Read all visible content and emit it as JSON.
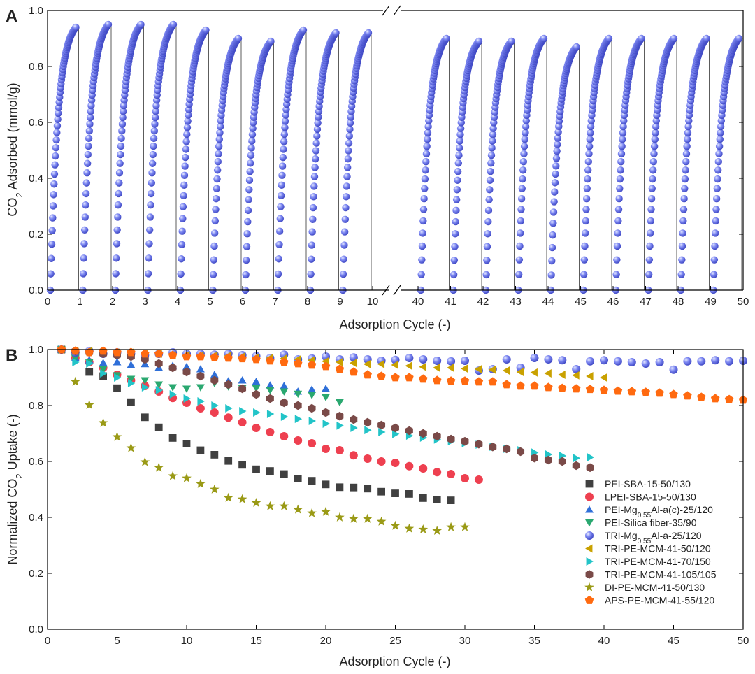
{
  "colors": {
    "sphere": "#6a76ee",
    "axis": "#000000"
  },
  "chart_data": [
    {
      "id": "A",
      "panel_label": "A",
      "type": "scatter",
      "title": "",
      "xlabel": "Adsorption Cycle (-)",
      "ylabel_main": "CO",
      "ylabel_sub": "2",
      "ylabel_rest": " Adsorbed (mmol/g)",
      "axis_break": true,
      "x_segments": [
        {
          "range": [
            0,
            10
          ],
          "ticks": [
            "0",
            "1",
            "2",
            "3",
            "4",
            "5",
            "6",
            "7",
            "8",
            "9",
            "10"
          ]
        },
        {
          "range": [
            40,
            50
          ],
          "ticks": [
            "40",
            "41",
            "42",
            "43",
            "44",
            "45",
            "46",
            "47",
            "48",
            "49",
            "50"
          ]
        }
      ],
      "ylim": [
        0,
        1.0
      ],
      "yticks": [
        "0.0",
        "0.2",
        "0.4",
        "0.6",
        "0.8",
        "1.0"
      ],
      "series": [
        {
          "name": "CO2 adsorption cycles",
          "marker": "sphere",
          "color": "#6a76ee",
          "cycle_peaks_first": [
            0.94,
            0.95,
            0.95,
            0.95,
            0.93,
            0.9,
            0.89,
            0.93,
            0.92,
            0.92
          ],
          "cycle_peaks_second": [
            0.9,
            0.89,
            0.89,
            0.9,
            0.87,
            0.9,
            0.9,
            0.9,
            0.9,
            0.9
          ]
        }
      ]
    },
    {
      "id": "B",
      "panel_label": "B",
      "type": "scatter",
      "title": "",
      "xlabel": "Adsorption Cycle (-)",
      "ylabel_main": "Normalized CO",
      "ylabel_sub": "2",
      "ylabel_rest": " Uptake (-)",
      "xlim": [
        0,
        50
      ],
      "xticks": [
        0,
        5,
        10,
        15,
        20,
        25,
        30,
        35,
        40,
        45,
        50
      ],
      "ylim": [
        0,
        1.0
      ],
      "yticks": [
        "0.0",
        "0.2",
        "0.4",
        "0.6",
        "0.8",
        "1.0"
      ],
      "legend_position": "lower-right",
      "series": [
        {
          "name": "PEI-SBA-15-50/130",
          "label_parts": [
            [
              "PEI-SBA-15-50/130",
              ""
            ]
          ],
          "marker": "square",
          "color": "#404040",
          "x": [
            1,
            2,
            3,
            4,
            5,
            6,
            7,
            8,
            9,
            10,
            11,
            12,
            13,
            14,
            15,
            16,
            17,
            18,
            19,
            20,
            21,
            22,
            23,
            24,
            25,
            26,
            27,
            28,
            29
          ],
          "y": [
            1.0,
            0.975,
            0.92,
            0.905,
            0.862,
            0.812,
            0.758,
            0.722,
            0.684,
            0.664,
            0.64,
            0.624,
            0.602,
            0.588,
            0.572,
            0.566,
            0.555,
            0.539,
            0.531,
            0.518,
            0.508,
            0.507,
            0.503,
            0.492,
            0.486,
            0.484,
            0.469,
            0.464,
            0.461
          ]
        },
        {
          "name": "LPEI-SBA-15-50/130",
          "label_parts": [
            [
              "LPEI-SBA-15-50/130",
              ""
            ]
          ],
          "marker": "circle",
          "color": "#ee4050",
          "x": [
            1,
            2,
            3,
            4,
            5,
            6,
            7,
            8,
            9,
            10,
            11,
            12,
            13,
            14,
            15,
            16,
            17,
            18,
            19,
            20,
            21,
            22,
            23,
            24,
            25,
            26,
            27,
            28,
            29,
            30,
            31
          ],
          "y": [
            1.0,
            0.97,
            0.955,
            0.935,
            0.91,
            0.89,
            0.87,
            0.85,
            0.827,
            0.81,
            0.79,
            0.775,
            0.757,
            0.74,
            0.72,
            0.705,
            0.69,
            0.675,
            0.665,
            0.645,
            0.64,
            0.622,
            0.61,
            0.6,
            0.595,
            0.583,
            0.575,
            0.562,
            0.555,
            0.54,
            0.535
          ]
        },
        {
          "name": "PEI-Mg0.55Al-a(c)-25/120",
          "label_parts": [
            [
              "PEI-Mg",
              ""
            ],
            [
              "0.55",
              "sub"
            ],
            [
              "Al-a(c)-25/120",
              ""
            ]
          ],
          "marker": "triangle-up",
          "color": "#2f6fd8",
          "x": [
            1,
            2,
            3,
            4,
            5,
            6,
            7,
            8,
            9,
            10,
            11,
            12,
            13,
            14,
            15,
            16,
            17,
            18,
            19,
            20
          ],
          "y": [
            1.0,
            0.97,
            0.962,
            0.952,
            0.955,
            0.945,
            0.948,
            0.935,
            0.942,
            0.938,
            0.93,
            0.91,
            0.887,
            0.89,
            0.885,
            0.872,
            0.87,
            0.85,
            0.857,
            0.86
          ]
        },
        {
          "name": "PEI-Silica fiber-35/90",
          "label_parts": [
            [
              "PEI-Silica fiber-35/90",
              ""
            ]
          ],
          "marker": "triangle-down",
          "color": "#2aa870",
          "x": [
            1,
            2,
            3,
            4,
            5,
            6,
            7,
            8,
            9,
            10,
            11,
            12,
            13,
            14,
            15,
            16,
            17,
            18,
            19,
            20,
            21
          ],
          "y": [
            1.0,
            0.97,
            0.955,
            0.93,
            0.908,
            0.895,
            0.89,
            0.875,
            0.865,
            0.86,
            0.865,
            0.88,
            0.868,
            0.862,
            0.862,
            0.855,
            0.85,
            0.842,
            0.838,
            0.83,
            0.812
          ]
        },
        {
          "name": "TRI-Mg0.55Al-a-25/120",
          "label_parts": [
            [
              "TRI-Mg",
              ""
            ],
            [
              "0.55",
              "sub"
            ],
            [
              "Al-a-25/120",
              ""
            ]
          ],
          "marker": "sphere",
          "color": "#6a76ee",
          "x": [
            1,
            2,
            3,
            4,
            5,
            6,
            7,
            8,
            9,
            10,
            11,
            12,
            13,
            14,
            15,
            16,
            17,
            18,
            19,
            20,
            21,
            22,
            23,
            24,
            25,
            26,
            27,
            28,
            29,
            30,
            31,
            32,
            33,
            34,
            35,
            36,
            37,
            38,
            39,
            40,
            41,
            42,
            43,
            44,
            45,
            46,
            47,
            48,
            49,
            50
          ],
          "y": [
            1.0,
            0.99,
            0.995,
            0.985,
            0.99,
            0.985,
            0.98,
            0.985,
            0.99,
            0.985,
            0.985,
            0.982,
            0.985,
            0.98,
            0.977,
            0.97,
            0.982,
            0.965,
            0.968,
            0.975,
            0.965,
            0.972,
            0.965,
            0.96,
            0.963,
            0.97,
            0.965,
            0.96,
            0.958,
            0.96,
            0.925,
            0.93,
            0.965,
            0.935,
            0.97,
            0.965,
            0.962,
            0.93,
            0.958,
            0.962,
            0.958,
            0.955,
            0.95,
            0.955,
            0.928,
            0.958,
            0.958,
            0.962,
            0.958,
            0.96
          ]
        },
        {
          "name": "TRI-PE-MCM-41-50/120",
          "label_parts": [
            [
              "TRI-PE-MCM-41-50/120",
              ""
            ]
          ],
          "marker": "triangle-left",
          "color": "#c9a100",
          "x": [
            1,
            2,
            3,
            4,
            5,
            6,
            7,
            8,
            9,
            10,
            11,
            12,
            13,
            14,
            15,
            16,
            17,
            18,
            19,
            20,
            21,
            22,
            23,
            24,
            25,
            26,
            27,
            28,
            29,
            30,
            31,
            32,
            33,
            34,
            35,
            36,
            37,
            38,
            39,
            40
          ],
          "y": [
            1.0,
            0.995,
            0.995,
            0.99,
            0.99,
            0.99,
            0.985,
            0.985,
            0.98,
            0.98,
            0.978,
            0.978,
            0.978,
            0.975,
            0.972,
            0.97,
            0.968,
            0.965,
            0.962,
            0.958,
            0.955,
            0.952,
            0.948,
            0.948,
            0.945,
            0.942,
            0.938,
            0.935,
            0.935,
            0.932,
            0.93,
            0.928,
            0.925,
            0.92,
            0.918,
            0.915,
            0.91,
            0.908,
            0.905,
            0.9
          ]
        },
        {
          "name": "TRI-PE-MCM-41-70/150",
          "label_parts": [
            [
              "TRI-PE-MCM-41-70/150",
              ""
            ]
          ],
          "marker": "triangle-right",
          "color": "#22c4c8",
          "x": [
            1,
            2,
            3,
            4,
            5,
            6,
            7,
            8,
            9,
            10,
            11,
            12,
            13,
            14,
            15,
            16,
            17,
            18,
            19,
            20,
            21,
            22,
            23,
            24,
            25,
            26,
            27,
            28,
            29,
            30,
            31,
            32,
            33,
            34,
            35,
            36,
            37,
            38,
            39
          ],
          "y": [
            1.0,
            0.955,
            0.95,
            0.915,
            0.9,
            0.88,
            0.865,
            0.855,
            0.84,
            0.825,
            0.815,
            0.8,
            0.79,
            0.78,
            0.775,
            0.77,
            0.76,
            0.752,
            0.745,
            0.735,
            0.728,
            0.72,
            0.712,
            0.705,
            0.698,
            0.692,
            0.685,
            0.678,
            0.672,
            0.665,
            0.66,
            0.652,
            0.645,
            0.64,
            0.632,
            0.625,
            0.62,
            0.612,
            0.615
          ]
        },
        {
          "name": "TRI-PE-MCM-41-105/105",
          "label_parts": [
            [
              "TRI-PE-MCM-41-105/105",
              ""
            ]
          ],
          "marker": "hexagon",
          "color": "#7a4a48",
          "x": [
            1,
            2,
            3,
            4,
            5,
            6,
            7,
            8,
            9,
            10,
            11,
            12,
            13,
            14,
            15,
            16,
            17,
            18,
            19,
            20,
            21,
            22,
            23,
            24,
            25,
            26,
            27,
            28,
            29,
            30,
            31,
            32,
            33,
            34,
            35,
            36,
            37,
            38,
            39
          ],
          "y": [
            1.0,
            0.995,
            0.99,
            0.985,
            0.98,
            0.975,
            0.965,
            0.95,
            0.935,
            0.92,
            0.905,
            0.89,
            0.875,
            0.86,
            0.84,
            0.825,
            0.81,
            0.8,
            0.79,
            0.775,
            0.762,
            0.75,
            0.74,
            0.73,
            0.72,
            0.71,
            0.7,
            0.69,
            0.68,
            0.672,
            0.662,
            0.652,
            0.645,
            0.635,
            0.612,
            0.605,
            0.6,
            0.585,
            0.578
          ]
        },
        {
          "name": "DI-PE-MCM-41-50/130",
          "label_parts": [
            [
              "DI-PE-MCM-41-50/130",
              ""
            ]
          ],
          "marker": "star",
          "color": "#9a9a16",
          "x": [
            1,
            2,
            3,
            4,
            5,
            6,
            7,
            8,
            9,
            10,
            11,
            12,
            13,
            14,
            15,
            16,
            17,
            18,
            19,
            20,
            21,
            22,
            23,
            24,
            25,
            26,
            27,
            28,
            29,
            30
          ],
          "y": [
            1.0,
            0.885,
            0.802,
            0.738,
            0.688,
            0.648,
            0.598,
            0.578,
            0.548,
            0.54,
            0.52,
            0.5,
            0.47,
            0.465,
            0.452,
            0.44,
            0.44,
            0.428,
            0.415,
            0.42,
            0.4,
            0.395,
            0.395,
            0.385,
            0.37,
            0.36,
            0.357,
            0.352,
            0.365,
            0.365
          ]
        },
        {
          "name": "APS-PE-MCM-41-55/120",
          "label_parts": [
            [
              "APS-PE-MCM-41-55/120",
              ""
            ]
          ],
          "marker": "pentagon",
          "color": "#ff6a10",
          "x": [
            1,
            2,
            3,
            4,
            5,
            6,
            7,
            8,
            9,
            10,
            11,
            12,
            13,
            14,
            15,
            16,
            17,
            18,
            19,
            20,
            21,
            22,
            23,
            24,
            25,
            26,
            27,
            28,
            29,
            30,
            31,
            32,
            33,
            34,
            35,
            36,
            37,
            38,
            39,
            40,
            41,
            42,
            43,
            44,
            45,
            46,
            47,
            48,
            49,
            50
          ],
          "y": [
            1.0,
            0.995,
            0.99,
            0.995,
            0.99,
            0.99,
            0.985,
            0.985,
            0.98,
            0.975,
            0.975,
            0.972,
            0.97,
            0.968,
            0.965,
            0.96,
            0.955,
            0.95,
            0.945,
            0.94,
            0.93,
            0.92,
            0.91,
            0.905,
            0.9,
            0.9,
            0.895,
            0.89,
            0.888,
            0.888,
            0.885,
            0.885,
            0.875,
            0.87,
            0.87,
            0.865,
            0.862,
            0.86,
            0.858,
            0.855,
            0.852,
            0.85,
            0.848,
            0.845,
            0.84,
            0.835,
            0.83,
            0.825,
            0.822,
            0.82
          ]
        }
      ]
    }
  ]
}
